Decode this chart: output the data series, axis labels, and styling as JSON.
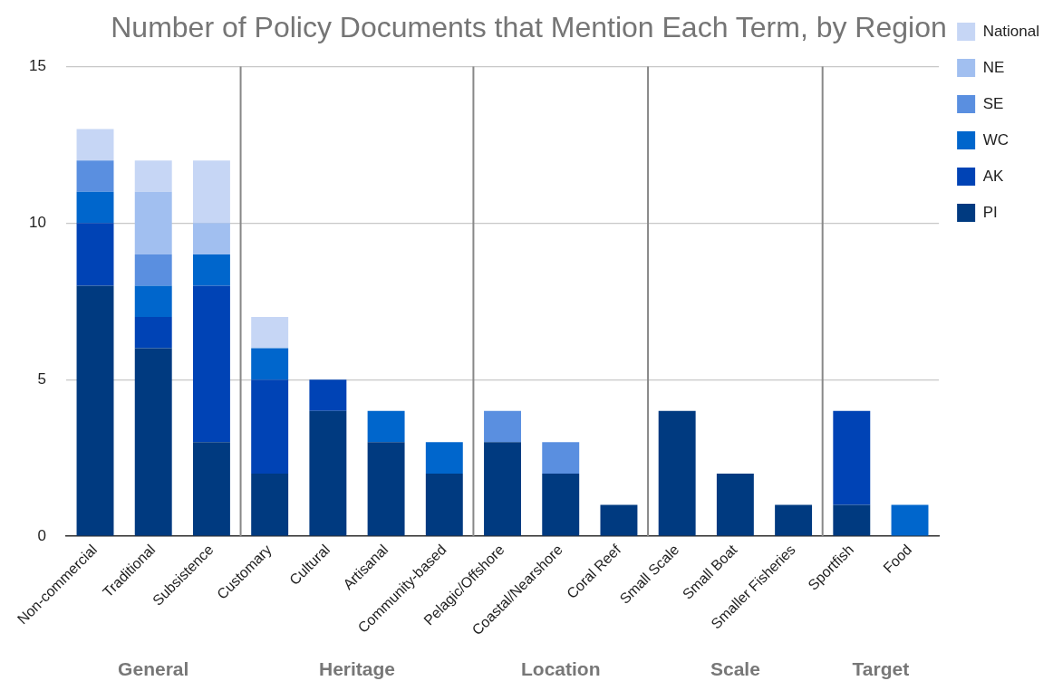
{
  "chart_data": {
    "type": "bar",
    "title": "Number of Policy Documents that Mention Each Term, by Region",
    "stacked": true,
    "categories": [
      "Non-commercial",
      "Traditional",
      "Subsistence",
      "Customary",
      "Cultural",
      "Artisanal",
      "Community-based",
      "Pelagic/Offshore",
      "Coastal/Nearshore",
      "Coral Reef",
      "Small Scale",
      "Small Boat",
      "Smaller Fisheries",
      "Sportfish",
      "Food"
    ],
    "series": [
      {
        "name": "PI",
        "color": "#003a80",
        "values": [
          8,
          6,
          3,
          2,
          4,
          3,
          2,
          3,
          2,
          1,
          4,
          2,
          1,
          1,
          0
        ]
      },
      {
        "name": "AK",
        "color": "#0043b5",
        "values": [
          2,
          1,
          5,
          3,
          1,
          0,
          0,
          0,
          0,
          0,
          0,
          0,
          0,
          3,
          0
        ]
      },
      {
        "name": "WC",
        "color": "#0066cc",
        "values": [
          1,
          1,
          1,
          1,
          0,
          1,
          1,
          0,
          0,
          0,
          0,
          0,
          0,
          0,
          1
        ]
      },
      {
        "name": "SE",
        "color": "#5a8fe0",
        "values": [
          1,
          1,
          0,
          0,
          0,
          0,
          0,
          1,
          1,
          0,
          0,
          0,
          0,
          0,
          0
        ]
      },
      {
        "name": "NE",
        "color": "#a1bff0",
        "values": [
          0,
          2,
          1,
          0,
          0,
          0,
          0,
          0,
          0,
          0,
          0,
          0,
          0,
          0,
          0
        ]
      },
      {
        "name": "National",
        "color": "#c6d6f5",
        "values": [
          1,
          1,
          2,
          1,
          0,
          0,
          0,
          0,
          0,
          0,
          0,
          0,
          0,
          0,
          0
        ]
      }
    ],
    "ylim": [
      0,
      15
    ],
    "yticks": [
      0,
      5,
      10,
      15
    ],
    "grid": "y",
    "legend": "top right",
    "annotations": [
      "General",
      "Heritage",
      "Location",
      "Scale",
      "Target"
    ]
  }
}
